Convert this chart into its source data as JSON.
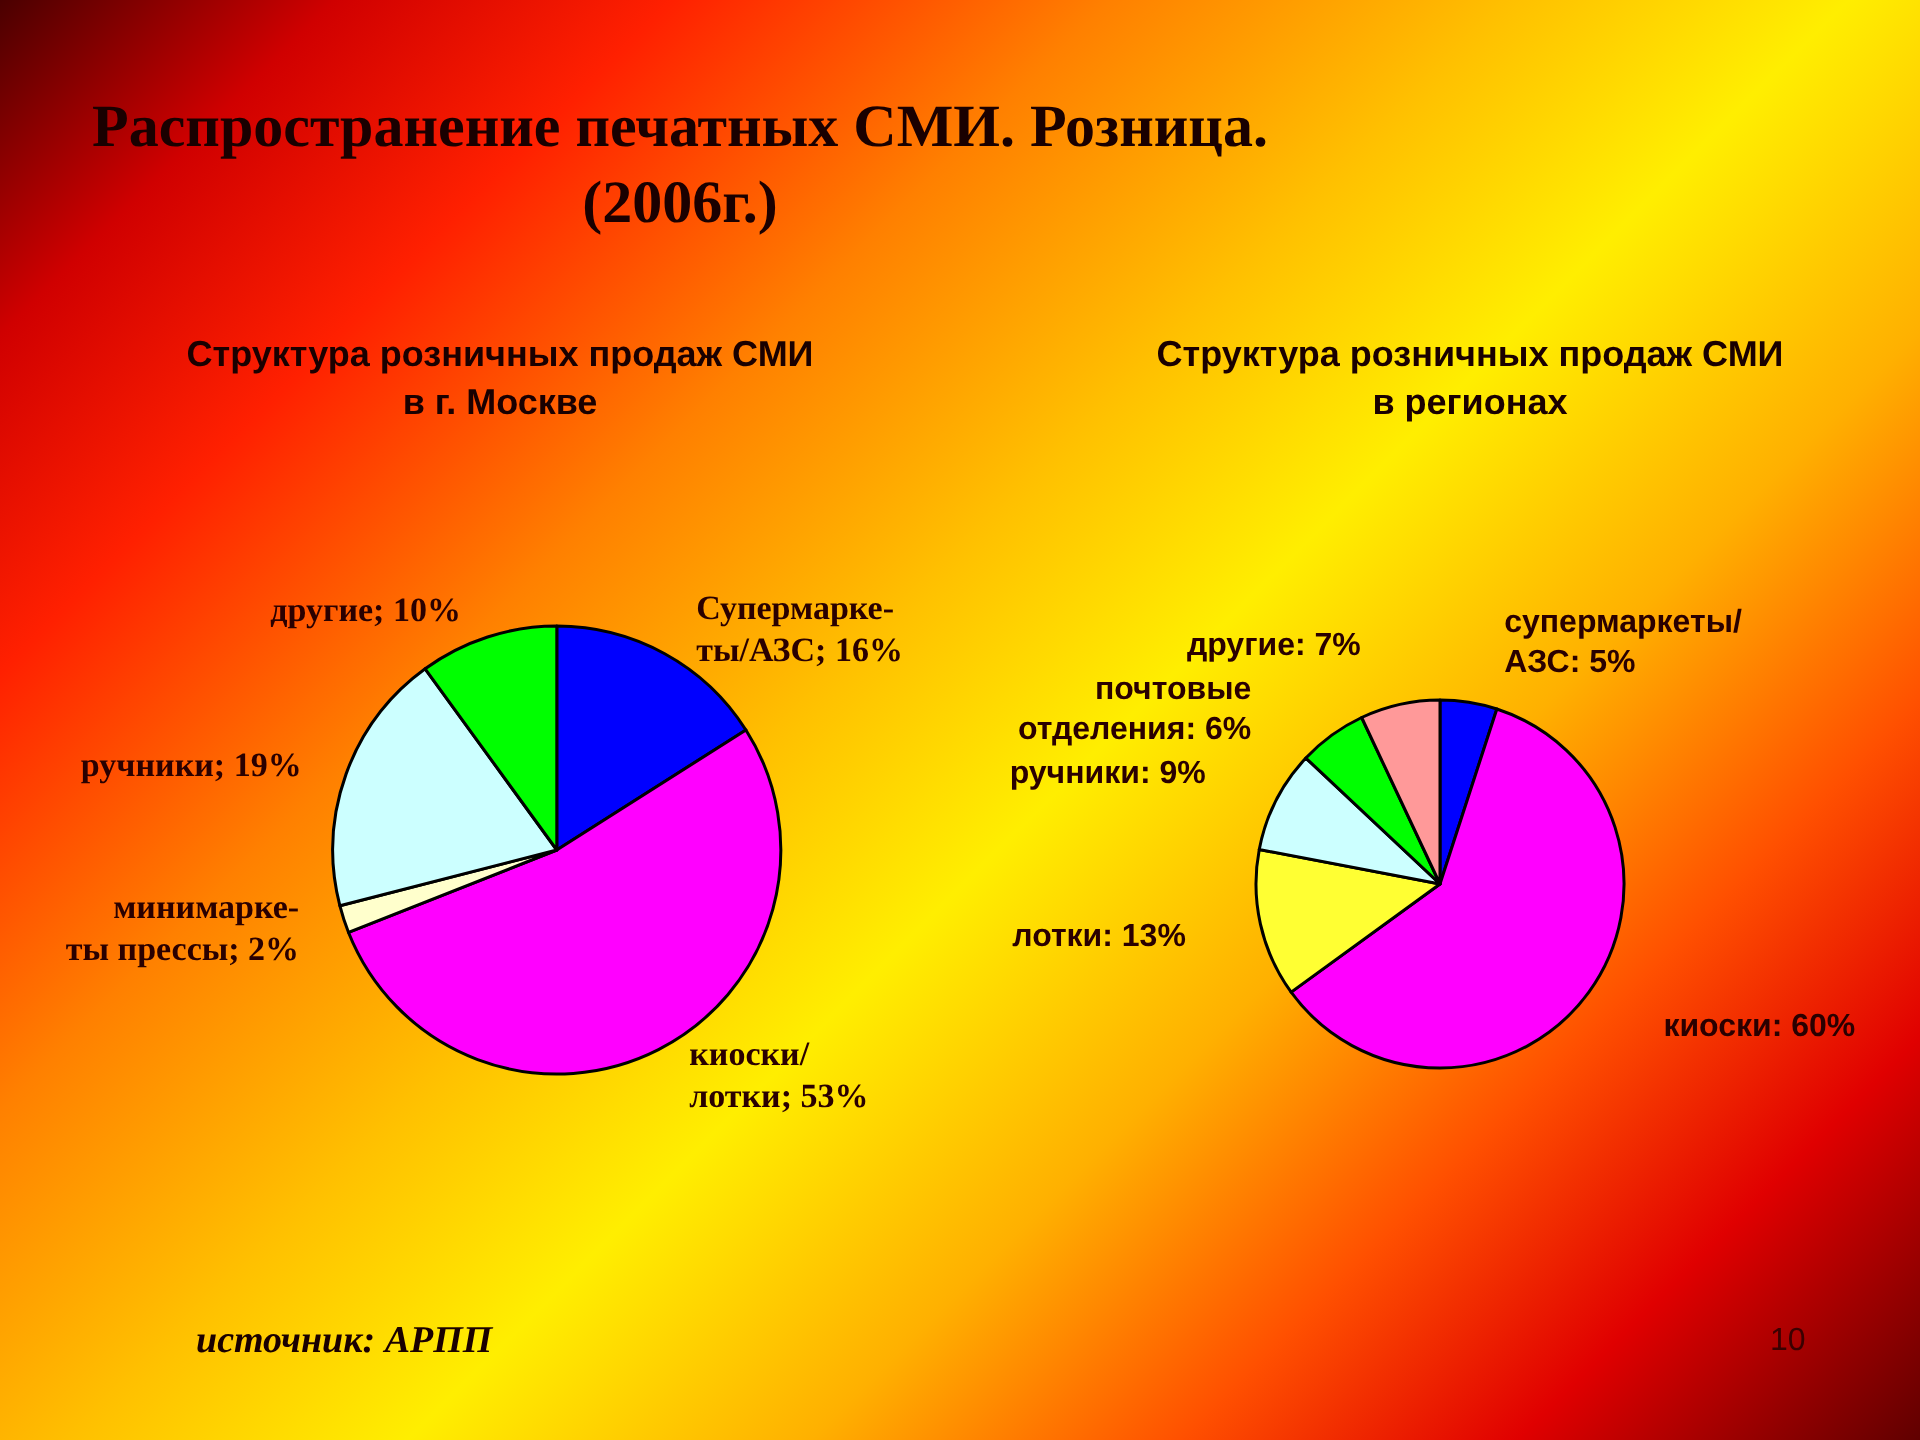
{
  "chart_data": [
    {
      "type": "pie",
      "title": "Распространение печатных СМИ. Розница.\n(2006г.)",
      "subtitle": "Структура розничных продаж СМИ\nв г. Москве",
      "categories": [
        "Супермарке-\nты/АЗС",
        "киоски/\nлотки",
        "минимарке-\nты прессы",
        "ручники",
        "другие"
      ],
      "values": [
        16,
        53,
        2,
        19,
        10
      ],
      "colors": [
        "#0000ff",
        "#ff00ff",
        "#ffffcc",
        "#ccffff",
        "#00ff00"
      ],
      "value_labels": [
        "16%",
        "53%",
        "2%",
        "19%",
        "10%"
      ],
      "annotations": [
        "источник: АРПП"
      ]
    },
    {
      "type": "pie",
      "title": "Структура розничных продаж СМИ\nв регионах",
      "categories": [
        "супермаркеты/\nАЗС",
        "киоски",
        "лотки",
        "ручники",
        "почтовые\nотделения",
        "другие"
      ],
      "values": [
        5,
        60,
        13,
        9,
        6,
        7
      ],
      "colors": [
        "#0000ff",
        "#ff00ff",
        "#ffff33",
        "#ccffff",
        "#00ff00",
        "#ff9999"
      ],
      "value_labels": [
        "5%",
        "60%",
        "13%",
        "9%",
        "6%",
        "7%"
      ],
      "annotations": [
        "10"
      ]
    }
  ]
}
